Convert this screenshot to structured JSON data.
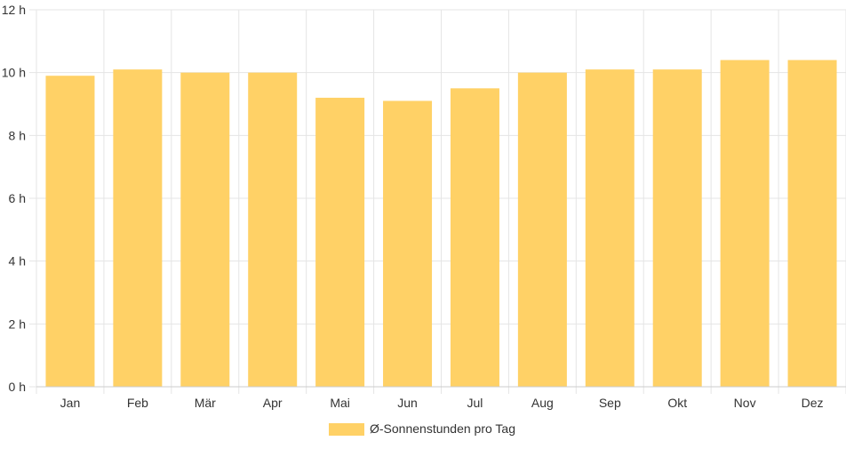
{
  "chart_data": {
    "type": "bar",
    "categories": [
      "Jan",
      "Feb",
      "Mär",
      "Apr",
      "Mai",
      "Jun",
      "Jul",
      "Aug",
      "Sep",
      "Okt",
      "Nov",
      "Dez"
    ],
    "series": [
      {
        "name": "Ø-Sonnenstunden pro Tag",
        "values": [
          9.9,
          10.1,
          10.0,
          10.0,
          9.2,
          9.1,
          9.5,
          10.0,
          10.1,
          10.1,
          10.4,
          10.4
        ],
        "color": "#ffd166"
      }
    ],
    "y_ticks": [
      "0 h",
      "2 h",
      "4 h",
      "6 h",
      "8 h",
      "10 h",
      "12 h"
    ],
    "ylim": [
      0,
      12
    ],
    "grid": true,
    "legend_position": "bottom"
  },
  "colors": {
    "grid": "#e5e5e5",
    "axis": "#cccccc",
    "text": "#333333"
  }
}
